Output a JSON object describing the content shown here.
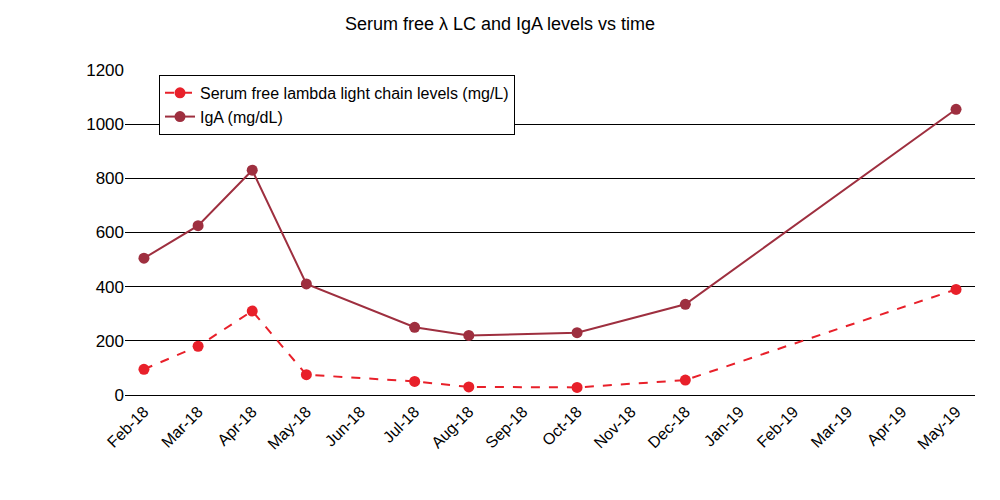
{
  "chart_data": {
    "type": "line",
    "title": "Serum free λ LC and IgA levels vs time",
    "categories": [
      "Feb-18",
      "Mar-18",
      "Apr-18",
      "May-18",
      "Jun-18",
      "Jul-18",
      "Aug-18",
      "Sep-18",
      "Oct-18",
      "Nov-18",
      "Dec-18",
      "Jan-19",
      "Feb-19",
      "Mar-19",
      "Apr-19",
      "May-19"
    ],
    "series": [
      {
        "name": "Serum free lambda light chain levels (mg/L)",
        "color": "#e8202a",
        "marker": "circle",
        "line_style": "dashed",
        "x": [
          "Feb-18",
          "Mar-18",
          "Apr-18",
          "May-18",
          "Jul-18",
          "Aug-18",
          "Oct-18",
          "Dec-18",
          "May-19"
        ],
        "values": [
          95,
          180,
          310,
          75,
          50,
          30,
          28,
          55,
          390
        ]
      },
      {
        "name": "IgA (mg/dL)",
        "color": "#9e2f3f",
        "marker": "circle",
        "line_style": "solid",
        "x": [
          "Feb-18",
          "Mar-18",
          "Apr-18",
          "May-18",
          "Jul-18",
          "Aug-18",
          "Oct-18",
          "Dec-18",
          "May-19"
        ],
        "values": [
          505,
          625,
          830,
          410,
          250,
          220,
          230,
          335,
          1055
        ]
      }
    ],
    "ylim": [
      0,
      1200
    ],
    "yticks": [
      0,
      200,
      400,
      600,
      800,
      1000,
      1200
    ],
    "grid": true,
    "legend": "top-left"
  }
}
